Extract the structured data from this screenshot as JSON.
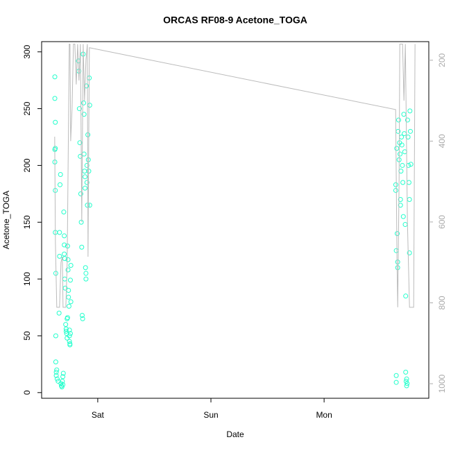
{
  "chart_data": {
    "type": "scatter",
    "title": "ORCAS RF08-9 Acetone_TOGA",
    "x_label": "Date",
    "y_label": "Acetone_TOGA",
    "xlim": [
      12.1,
      94.2
    ],
    "xticks": [
      {
        "value": 24,
        "label": "Sat"
      },
      {
        "value": 48,
        "label": "Sun"
      },
      {
        "value": 72,
        "label": "Mon"
      }
    ],
    "ylim": [
      -5,
      309
    ],
    "yticks": [
      0,
      50,
      100,
      150,
      200,
      250,
      300
    ],
    "y2lim": [
      1036,
      154
    ],
    "y2ticks": [
      200,
      400,
      600,
      800,
      1000
    ],
    "series": [
      {
        "type": "scatter",
        "color": "#22ffcc",
        "x": [
          14.9,
          14.9,
          15.0,
          15.0,
          14.9,
          14.9,
          15.0,
          15.0,
          15.1,
          15.1,
          15.1,
          15.2,
          15.2,
          15.3,
          15.4,
          15.6,
          15.8,
          15.9,
          15.9,
          16.0,
          16.1,
          16.2,
          16.3,
          16.4,
          16.5,
          16.6,
          16.7,
          16.6,
          16.8,
          16.9,
          16.9,
          16.9,
          17.0,
          17.0,
          17.1,
          17.2,
          17.3,
          17.3,
          17.4,
          17.5,
          17.5,
          17.6,
          17.6,
          17.7,
          17.7,
          17.8,
          17.8,
          17.9,
          18.0,
          18.0,
          18.0,
          18.1,
          18.1,
          18.2,
          18.2,
          18.3,
          18.3,
          19.9,
          20.0,
          20.1,
          20.2,
          20.3,
          20.4,
          20.5,
          20.6,
          20.7,
          20.8,
          20.9,
          21.0,
          21.1,
          21.1,
          21.2,
          21.3,
          21.3,
          21.4,
          21.5,
          21.5,
          21.6,
          21.7,
          21.7,
          21.8,
          21.9,
          22.0,
          22.1,
          22.2,
          22.3,
          22.3,
          87.2,
          87.2,
          87.3,
          87.3,
          87.3,
          87.4,
          87.5,
          87.6,
          87.6,
          87.7,
          87.8,
          87.9,
          88.0,
          88.1,
          88.2,
          88.2,
          88.3,
          88.4,
          88.5,
          88.6,
          88.7,
          88.8,
          88.9,
          89.0,
          89.1,
          89.2,
          89.3,
          89.3,
          89.4,
          89.5,
          89.6,
          89.7,
          89.8,
          89.9,
          90.0,
          90.1,
          90.1,
          90.2,
          90.3,
          90.4,
          89.5
        ],
        "values": [
          278,
          259,
          238,
          215,
          214,
          203,
          178,
          141,
          105,
          50,
          27,
          18,
          15,
          20,
          12,
          10,
          70,
          120,
          141,
          183,
          192,
          8,
          6,
          5,
          10,
          14,
          17,
          7,
          159,
          138,
          130,
          122,
          118,
          100,
          92,
          60,
          56,
          54,
          52,
          48,
          65,
          66,
          129,
          117,
          108,
          90,
          84,
          76,
          55,
          50,
          45,
          43,
          42,
          52,
          99,
          112,
          80,
          292,
          283,
          250,
          220,
          208,
          175,
          150,
          128,
          68,
          65,
          298,
          255,
          245,
          210,
          195,
          190,
          180,
          110,
          105,
          100,
          270,
          200,
          185,
          165,
          227,
          205,
          195,
          277,
          253,
          165,
          183,
          178,
          125,
          15,
          9,
          215,
          140,
          115,
          110,
          230,
          240,
          205,
          220,
          210,
          170,
          165,
          195,
          225,
          218,
          200,
          185,
          155,
          245,
          228,
          212,
          148,
          85,
          18,
          10,
          6,
          8,
          240,
          225,
          200,
          185,
          170,
          123,
          248,
          230,
          201,
          12
        ]
      },
      {
        "type": "line",
        "axis": "y2",
        "color": "#bbbbbb",
        "x": [
          14.87,
          15.02,
          15.31,
          15.9,
          16.2,
          16.49,
          16.64,
          17.23,
          17.52,
          17.96,
          18.11,
          18.26,
          18.55,
          18.85,
          19.14,
          19.44,
          19.73,
          20.02,
          20.32,
          20.61,
          20.91,
          21.2,
          21.5,
          21.79,
          21.94,
          22.09,
          22.23,
          87.17,
          87.46,
          87.61,
          87.9,
          88.05,
          88.64,
          88.93,
          89.23,
          89.67,
          90.11,
          90.99,
          91.28
        ],
        "values": [
          389,
          650,
          811,
          811,
          700,
          686,
          811,
          811,
          700,
          160,
          160,
          400,
          320,
          160,
          160,
          260,
          160,
          250,
          160,
          600,
          160,
          300,
          200,
          160,
          686,
          400,
          169,
          322,
          700,
          811,
          500,
          160,
          160,
          300,
          160,
          600,
          811,
          811,
          160
        ]
      }
    ]
  }
}
